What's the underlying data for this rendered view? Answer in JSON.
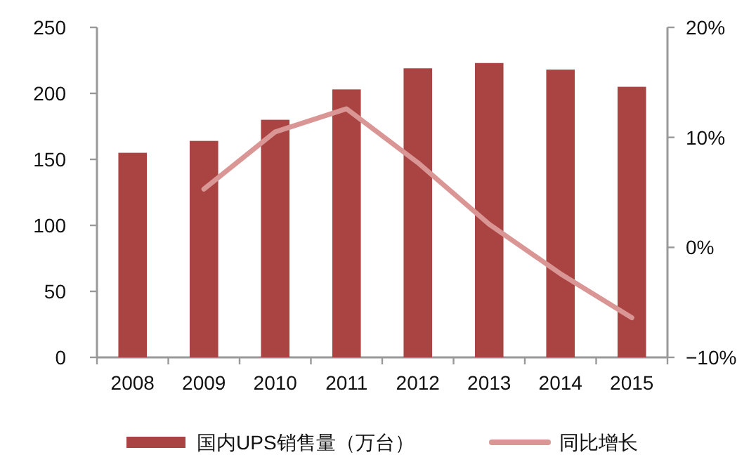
{
  "chart_data": {
    "type": "bar",
    "categories": [
      "2008",
      "2009",
      "2010",
      "2011",
      "2012",
      "2013",
      "2014",
      "2015"
    ],
    "series": [
      {
        "name": "国内UPS销售量（万台）",
        "color": "#a94442",
        "values": [
          155,
          164,
          180,
          203,
          219,
          223,
          218,
          205
        ]
      },
      {
        "name": "同比增长",
        "type": "line",
        "axis": "y2",
        "color": "#d99694",
        "values": [
          null,
          5.3,
          10.5,
          12.6,
          7.7,
          2.1,
          -2.4,
          -6.4
        ]
      }
    ],
    "ylim": [
      0,
      250
    ],
    "yticks": [
      0,
      50,
      100,
      150,
      200,
      250
    ],
    "y2lim": [
      -10,
      20
    ],
    "y2ticks": [
      {
        "value": -10,
        "label": "−10%"
      },
      {
        "value": 0,
        "label": "0%"
      },
      {
        "value": 10,
        "label": "10%"
      },
      {
        "value": 20,
        "label": "20%"
      }
    ],
    "legend": "bottom"
  }
}
